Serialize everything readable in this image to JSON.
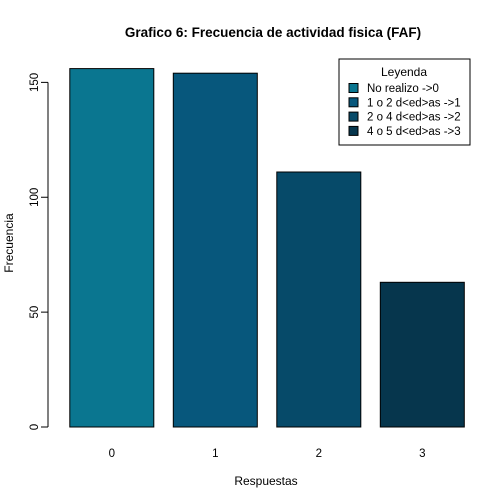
{
  "chart_data": {
    "type": "bar",
    "title": "Grafico 6: Frecuencia de actividad fisica  (FAF)",
    "xlabel": "Respuestas",
    "ylabel": "Frecuencia",
    "categories": [
      "0",
      "1",
      "2",
      "3"
    ],
    "values": [
      156,
      154,
      111,
      63
    ],
    "ylim": [
      0,
      160
    ],
    "yticks": [
      0,
      50,
      100,
      150
    ],
    "grid": false,
    "colors": [
      "#0a7690",
      "#07577c",
      "#064a69",
      "#06364d"
    ],
    "legend": {
      "title": "Leyenda",
      "position": "top-right",
      "entries": [
        "No realizo ->0",
        "1 o 2 d<ed>as ->1",
        "2 o 4 d<ed>as ->2",
        "4 o 5 d<ed>as ->3"
      ]
    }
  }
}
